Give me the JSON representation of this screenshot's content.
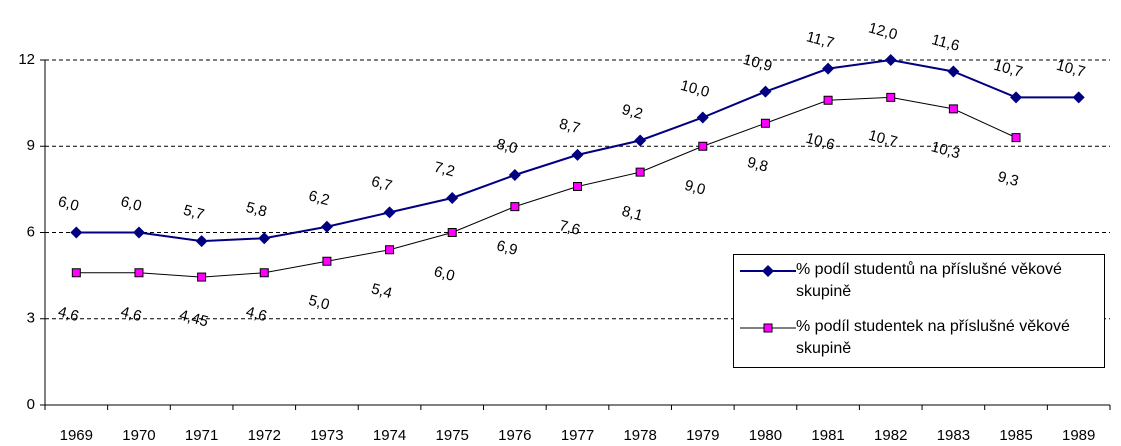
{
  "chart_data": {
    "type": "line",
    "categories": [
      "1969",
      "1970",
      "1971",
      "1972",
      "1973",
      "1974",
      "1975",
      "1976",
      "1977",
      "1978",
      "1979",
      "1980",
      "1981",
      "1982",
      "1983",
      "1985",
      "1989"
    ],
    "series": [
      {
        "name": "% podíl studentů na příslušné věkové skupině",
        "color": "#000080",
        "marker": "diamond",
        "values": [
          6.0,
          6.0,
          5.7,
          5.8,
          6.2,
          6.7,
          7.2,
          8.0,
          8.7,
          9.2,
          10.0,
          10.9,
          11.7,
          12.0,
          11.6,
          10.7,
          10.7
        ],
        "value_labels": [
          "6,0",
          "6,0",
          "5,7",
          "5,8",
          "6,2",
          "6,7",
          "7,2",
          "8,0",
          "8,7",
          "9,2",
          "10,0",
          "10,9",
          "11,7",
          "12,0",
          "11,6",
          "10,7",
          "10,7"
        ]
      },
      {
        "name": "% podíl studentek na příslušné věkové skupině",
        "color": "#ff00ff",
        "marker": "square",
        "values": [
          4.6,
          4.6,
          4.45,
          4.6,
          5.0,
          5.4,
          6.0,
          6.9,
          7.6,
          8.1,
          9.0,
          9.8,
          10.6,
          10.7,
          10.3,
          9.3,
          null
        ],
        "value_labels": [
          "4,6",
          "4,6",
          "4,45",
          "4,6",
          "5,0",
          "5,4",
          "6,0",
          "6,9",
          "7,6",
          "8,1",
          "9,0",
          "9,8",
          "10,6",
          "10,7",
          "10,3",
          "9,3",
          null
        ]
      }
    ],
    "ylim": [
      0,
      12
    ],
    "yticks": [
      0,
      3,
      6,
      9,
      12
    ],
    "grid": true
  }
}
